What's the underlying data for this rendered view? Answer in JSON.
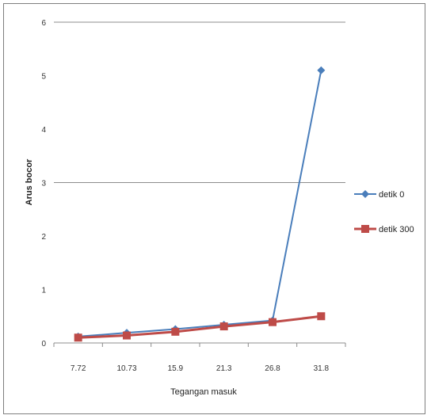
{
  "chart_data": {
    "type": "line",
    "title": "",
    "xlabel": "Tegangan masuk",
    "ylabel": "Arus bocor",
    "categories": [
      "7.72",
      "10.73",
      "15.9",
      "21.3",
      "26.8",
      "31.8"
    ],
    "y_ticks": [
      "0",
      "1",
      "2",
      "3",
      "4",
      "5",
      "6"
    ],
    "ylim": [
      0,
      6
    ],
    "gridlines": [
      0,
      3,
      6
    ],
    "legend_position": "right",
    "series": [
      {
        "name": "detik 0",
        "color": "#4a7ebb",
        "marker": "diamond",
        "values": [
          0.12,
          0.19,
          0.26,
          0.34,
          0.42,
          5.1
        ]
      },
      {
        "name": "detik 300",
        "color": "#be4b48",
        "marker": "square",
        "values": [
          0.1,
          0.14,
          0.21,
          0.31,
          0.39,
          0.5
        ]
      }
    ]
  }
}
